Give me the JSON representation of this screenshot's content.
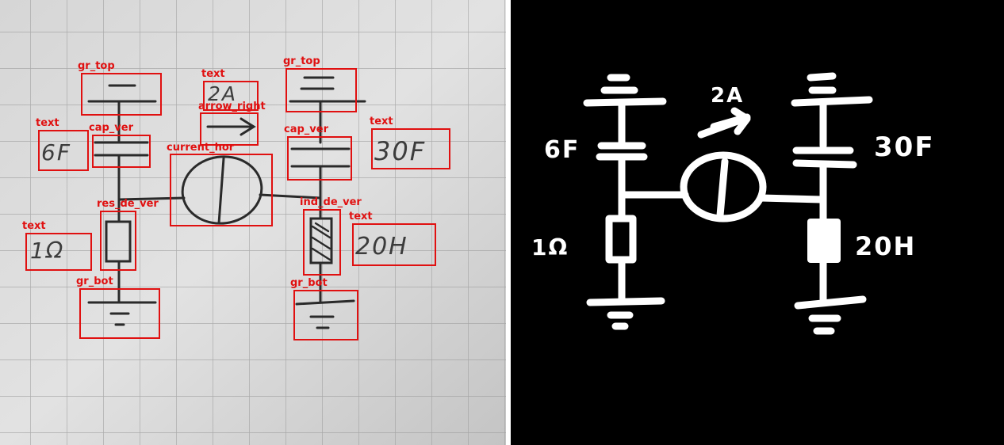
{
  "panels": {
    "photo": "annotated-photo",
    "mask": "binary-mask"
  },
  "colors": {
    "box": "#e01010",
    "paper": "#d9d9d9",
    "ink": "#2a2a2a",
    "mask_bg": "#000000",
    "mask_fg": "#ffffff"
  },
  "labels": {
    "gr_top_1": "gr_top",
    "gr_top_2": "gr_top",
    "text_2A": "text",
    "arrow_right": "arrow_right",
    "text_6F": "text",
    "cap_ver_1": "cap_ver",
    "cap_ver_2": "cap_ver",
    "text_30F": "text",
    "current_hor": "current_hor",
    "res_de_ver": "res_de_ver",
    "ind_de_ver": "ind_de_ver",
    "text_1ohm": "text",
    "text_20H": "text",
    "gr_bot_1": "gr_bot",
    "gr_bot_2": "gr_bot"
  },
  "handwriting": {
    "current": "2A",
    "cap_left": "6F",
    "cap_right": "30F",
    "resistor": "1Ω",
    "inductor": "20H"
  },
  "mask_text": {
    "current": "2A",
    "cap_left": "6F",
    "cap_right": "30F",
    "resistor": "1Ω",
    "inductor": "20H"
  }
}
